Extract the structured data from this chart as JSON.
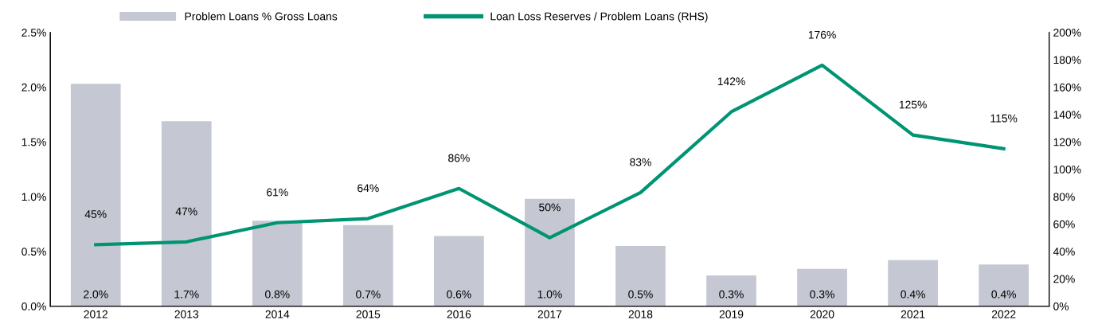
{
  "chart_data": {
    "type": "bar",
    "categories": [
      "2012",
      "2013",
      "2014",
      "2015",
      "2016",
      "2017",
      "2018",
      "2019",
      "2020",
      "2021",
      "2022"
    ],
    "series": [
      {
        "name": "Problem Loans % Gross Loans",
        "color": "#c5c8d2",
        "values": [
          2.03,
          1.69,
          0.78,
          0.74,
          0.64,
          0.98,
          0.55,
          0.28,
          0.34,
          0.42,
          0.38
        ],
        "value_labels": [
          "2.0%",
          "1.7%",
          "0.8%",
          "0.7%",
          "0.6%",
          "1.0%",
          "0.5%",
          "0.3%",
          "0.3%",
          "0.4%",
          "0.4%"
        ]
      },
      {
        "name": "Loan Loss Reserves / Problem Loans (RHS)",
        "type": "line",
        "axis": "y2",
        "color": "#009473",
        "values": [
          45,
          47,
          61,
          64,
          86,
          50,
          83,
          142,
          176,
          125,
          115
        ],
        "value_labels": [
          "45%",
          "47%",
          "61%",
          "64%",
          "86%",
          "50%",
          "83%",
          "142%",
          "176%",
          "125%",
          "115%"
        ]
      }
    ],
    "ylim": [
      0,
      2.5
    ],
    "yticks": [
      {
        "value": 0,
        "label": "0.0%"
      },
      {
        "value": 0.5,
        "label": "0.5%"
      },
      {
        "value": 1.0,
        "label": "1.0%"
      },
      {
        "value": 1.5,
        "label": "1.5%"
      },
      {
        "value": 2.0,
        "label": "2.0%"
      },
      {
        "value": 2.5,
        "label": "2.5%"
      }
    ],
    "y2lim": [
      0,
      200
    ],
    "y2ticks": [
      {
        "value": 0,
        "label": "0%"
      },
      {
        "value": 20,
        "label": "20%"
      },
      {
        "value": 40,
        "label": "40%"
      },
      {
        "value": 60,
        "label": "60%"
      },
      {
        "value": 80,
        "label": "80%"
      },
      {
        "value": 100,
        "label": "100%"
      },
      {
        "value": 120,
        "label": "120%"
      },
      {
        "value": 140,
        "label": "140%"
      },
      {
        "value": 160,
        "label": "160%"
      },
      {
        "value": 180,
        "label": "180%"
      },
      {
        "value": 200,
        "label": "200%"
      }
    ],
    "grid": false,
    "legend": "top",
    "marker": "none",
    "line_style": "solid"
  }
}
